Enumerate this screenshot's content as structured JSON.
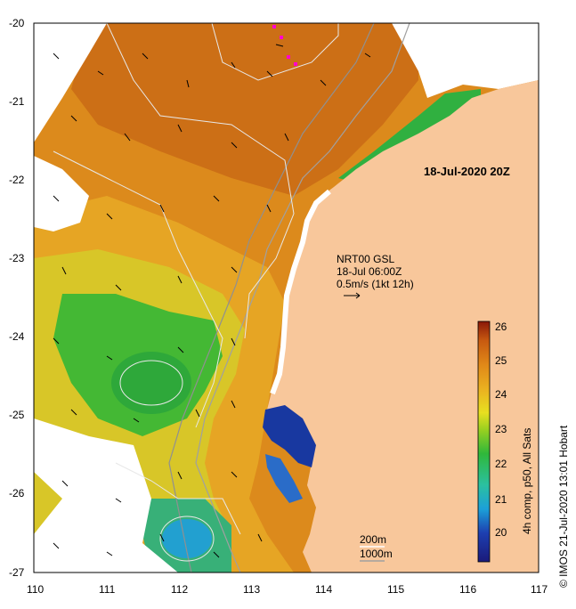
{
  "map": {
    "timestamp_label": "18-Jul-2020 20Z",
    "vector_info": {
      "line1": "NRT00 GSL",
      "line2": "18-Jul 06:00Z",
      "line3": "0.5m/s (1kt 12h)"
    },
    "contour_labels": {
      "shallow": "200m",
      "deep": "1000m"
    },
    "x_axis": {
      "ticks": [
        "110",
        "111",
        "112",
        "113",
        "114",
        "115",
        "116",
        "117"
      ]
    },
    "y_axis": {
      "ticks": [
        "-20",
        "-21",
        "-22",
        "-23",
        "-24",
        "-25",
        "-26",
        "-27"
      ]
    },
    "colorbar": {
      "ticks": [
        "20",
        "21",
        "22",
        "23",
        "24",
        "25",
        "26"
      ],
      "label": "4h comp, p50, All Sats"
    },
    "credit": "© IMOS 21-Jul-2020 13:01 Hobart",
    "colors": {
      "land": "#f8c79b",
      "sst_warm": "#d27a1a",
      "sst_mid": "#e8a020",
      "sst_cool": "#28b030",
      "sst_cold": "#1838a0",
      "cloud": "#ffffff"
    }
  }
}
